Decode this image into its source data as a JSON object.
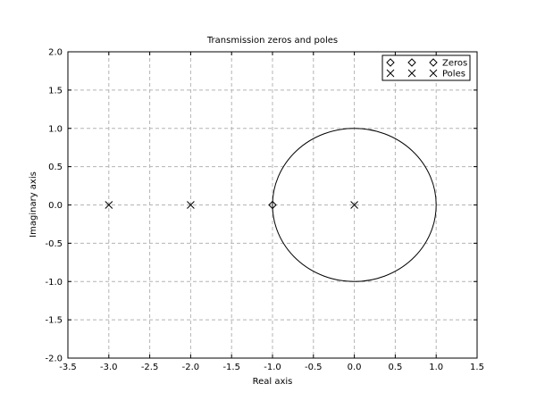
{
  "chart_data": {
    "type": "scatter",
    "title": "Transmission zeros and poles",
    "xlabel": "Real axis",
    "ylabel": "Imaginary axis",
    "xlim": [
      -3.5,
      1.5
    ],
    "ylim": [
      -2.0,
      2.0
    ],
    "x_ticks": [
      "-3.5",
      "-3.0",
      "-2.5",
      "-2.0",
      "-1.5",
      "-1.0",
      "-0.5",
      "0.0",
      "0.5",
      "1.0",
      "1.5"
    ],
    "x_tick_values": [
      -3.5,
      -3.0,
      -2.5,
      -2.0,
      -1.5,
      -1.0,
      -0.5,
      0.0,
      0.5,
      1.0,
      1.5
    ],
    "y_ticks": [
      "2.0",
      "1.5",
      "1.0",
      "0.5",
      "0.0",
      "-0.5",
      "-1.0",
      "-1.5",
      "-2.0"
    ],
    "y_tick_values": [
      2.0,
      1.5,
      1.0,
      0.5,
      0.0,
      -0.5,
      -1.0,
      -1.5,
      -2.0
    ],
    "grid": true,
    "legend_position": "top-right",
    "unit_circle": {
      "center": [
        0,
        0
      ],
      "radius": 1
    },
    "series": [
      {
        "name": "Zeros",
        "marker": "diamond",
        "points": [
          [
            -1.0,
            0.0
          ]
        ]
      },
      {
        "name": "Poles",
        "marker": "cross",
        "points": [
          [
            -3.0,
            0.0
          ],
          [
            -2.0,
            0.0
          ],
          [
            0.0,
            0.0
          ]
        ]
      }
    ]
  }
}
